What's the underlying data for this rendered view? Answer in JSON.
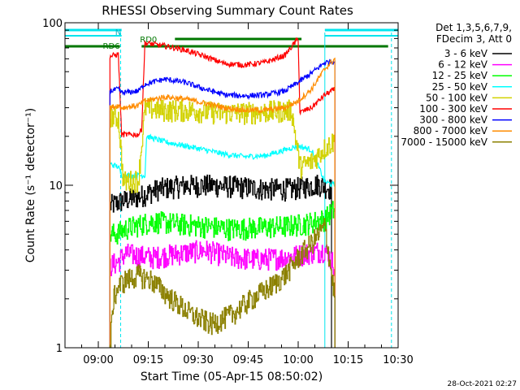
{
  "chart_data": {
    "type": "line",
    "title": "RHESSI Observing Summary Count Rates",
    "xlabel": "Start Time (05-Apr-15 08:50:02)",
    "ylabel": "Count Rate (s⁻¹ detector⁻¹)",
    "yscale": "log",
    "ylim": [
      1,
      100
    ],
    "xlim_minutes": [
      0,
      100
    ],
    "x_tick_labels": [
      "09:00",
      "09:15",
      "09:30",
      "09:45",
      "10:00",
      "10:15",
      "10:30"
    ],
    "x_tick_minutes": [
      10,
      25,
      40,
      55,
      70,
      85,
      100
    ],
    "y_tick_labels": [
      "1",
      "10",
      "100"
    ],
    "y_tick_values": [
      1,
      10,
      100
    ],
    "grid": false,
    "legend_position": "right",
    "legend_header": [
      "Det 1,3,5,6,7,9,",
      "FDecim 3, Att 0"
    ],
    "timestamp": "28-Oct-2021 02:27",
    "flag_labels": {
      "night": "N",
      "rd_zero": "RD0",
      "rd_six": "RD6"
    },
    "flags": {
      "night_segments": [
        [
          0,
          17
        ],
        [
          78,
          100
        ]
      ],
      "rd_zero_segments": [
        [
          33,
          71
        ]
      ],
      "rd_segments": [
        [
          0,
          16.5
        ],
        [
          23,
          97
        ]
      ],
      "rd_six_segment": [
        15.5,
        16.5
      ],
      "verticals": [
        {
          "minute": 16.7,
          "color": "#00e5ee",
          "dashed": true
        },
        {
          "minute": 78,
          "color": "#00e5ee",
          "dashed": false
        },
        {
          "minute": 98,
          "color": "#00e5ee",
          "dashed": true
        }
      ]
    },
    "series": [
      {
        "name": "3 - 6 keV",
        "color": "#000000",
        "shape": "step",
        "x": [
          13.5,
          17,
          22,
          28,
          36,
          44,
          52,
          60,
          68,
          72,
          76,
          80
        ],
        "y": [
          7.5,
          8,
          8.5,
          9.5,
          10,
          10,
          9.8,
          9.5,
          9.5,
          9.8,
          10.2,
          9.5
        ]
      },
      {
        "name": "6 - 12 keV",
        "color": "#ff00ff",
        "shape": "step",
        "x": [
          13.5,
          16,
          18,
          26,
          34,
          42,
          50,
          58,
          66,
          72,
          78,
          81
        ],
        "y": [
          3.2,
          3.4,
          3.8,
          3.6,
          3.8,
          4.0,
          3.6,
          3.5,
          3.6,
          3.8,
          4.0,
          3.2
        ]
      },
      {
        "name": "12 - 25 keV",
        "color": "#00ff00",
        "shape": "step",
        "x": [
          13.5,
          16,
          18,
          26,
          34,
          42,
          50,
          58,
          66,
          72,
          78,
          81
        ],
        "y": [
          5.0,
          5.1,
          5.4,
          6.0,
          5.8,
          5.6,
          5.4,
          5.5,
          5.6,
          5.8,
          6.2,
          7.2
        ]
      },
      {
        "name": "25 - 50 keV",
        "color": "#00ffff",
        "shape": "line",
        "x": [
          13.5,
          16,
          17,
          20,
          24,
          24.5,
          30,
          36,
          42,
          48,
          54,
          60,
          66,
          70,
          74,
          78,
          81
        ],
        "y": [
          13.5,
          13.0,
          11.5,
          11.5,
          11.5,
          20,
          18.5,
          17.5,
          16.5,
          15.5,
          15.0,
          15.2,
          16.5,
          17.5,
          16.5,
          10.5,
          10.0
        ]
      },
      {
        "name": "50 - 100 keV",
        "color": "#d2d200",
        "shape": "step",
        "x": [
          13.5,
          16,
          17.5,
          22,
          24,
          30,
          38,
          46,
          54,
          62,
          68,
          70.5,
          74,
          78,
          81
        ],
        "y": [
          27,
          26,
          10.5,
          10.8,
          30,
          29,
          29,
          28,
          28,
          28.5,
          29,
          13,
          14,
          17,
          19
        ]
      },
      {
        "name": "100 - 300 keV",
        "color": "#ff0000",
        "shape": "line",
        "x": [
          13.5,
          16,
          17,
          22,
          23,
          24,
          30,
          36,
          42,
          48,
          54,
          60,
          66,
          70,
          70.5,
          74,
          78,
          81
        ],
        "y": [
          62,
          64,
          20.5,
          20.5,
          22,
          75,
          72,
          68,
          62,
          56,
          55,
          57,
          63,
          80,
          28,
          30,
          36,
          39
        ]
      },
      {
        "name": "300 - 800 keV",
        "color": "#0000ff",
        "shape": "line",
        "x": [
          13.5,
          16,
          17,
          22,
          24,
          30,
          36,
          42,
          48,
          54,
          60,
          66,
          70,
          74,
          78,
          81
        ],
        "y": [
          38,
          39,
          37,
          38,
          42,
          45,
          43,
          39,
          36,
          35.5,
          36,
          38,
          43,
          49,
          57,
          58
        ]
      },
      {
        "name": "800 - 7000 keV",
        "color": "#ff8c00",
        "shape": "line",
        "x": [
          13.5,
          16,
          17,
          22,
          24,
          30,
          36,
          42,
          48,
          54,
          60,
          66,
          70,
          74,
          78,
          81
        ],
        "y": [
          30,
          31,
          30,
          31,
          33,
          35,
          34,
          32,
          30,
          29,
          29,
          30,
          33,
          39,
          52,
          60
        ]
      },
      {
        "name": "7000 - 15000 keV",
        "color": "#8b8000",
        "shape": "step",
        "x": [
          13.5,
          14.5,
          16,
          18,
          22,
          26,
          32,
          38,
          44,
          50,
          56,
          62,
          66,
          70,
          74,
          78,
          81
        ],
        "y": [
          1.0,
          2.0,
          2.4,
          2.6,
          2.8,
          2.6,
          2.0,
          1.6,
          1.4,
          1.6,
          2.0,
          2.4,
          2.8,
          3.6,
          4.4,
          5.6,
          2.0
        ]
      }
    ]
  }
}
